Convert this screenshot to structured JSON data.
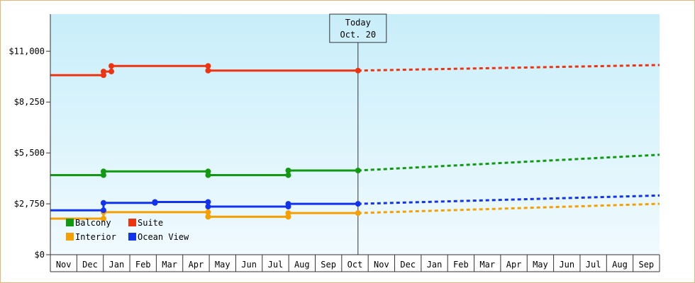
{
  "chart_data": {
    "type": "line",
    "title": "",
    "xlabel": "",
    "ylabel": "",
    "ylim": [
      0,
      13000
    ],
    "yticks": [
      0,
      2750,
      5500,
      8250,
      11000
    ],
    "ytick_labels": [
      "$0",
      "$2,750",
      "$5,500",
      "$8,250",
      "$11,000"
    ],
    "months": [
      "Nov",
      "Dec",
      "Jan",
      "Feb",
      "Mar",
      "Apr",
      "May",
      "Jun",
      "Jul",
      "Aug",
      "Sep",
      "Oct",
      "Nov",
      "Dec",
      "Jan",
      "Feb",
      "Mar",
      "Apr",
      "May",
      "Jun",
      "Jul",
      "Aug",
      "Sep"
    ],
    "x_start": "2022-11-01",
    "x_end": "2024-09-30",
    "today": {
      "label": "Today",
      "date_label": "Oct. 20",
      "x": "2023-10-20"
    },
    "grid": false,
    "legend_position": "bottom-left",
    "series": [
      {
        "name": "Balcony",
        "color": "#119911",
        "points": [
          [
            "2022-11-01",
            4300
          ],
          [
            "2023-01-01",
            4300
          ],
          [
            "2023-01-01",
            4500
          ],
          [
            "2023-05-01",
            4500
          ],
          [
            "2023-05-01",
            4300
          ],
          [
            "2023-08-01",
            4300
          ],
          [
            "2023-08-01",
            4550
          ],
          [
            "2023-10-20",
            4550
          ]
        ],
        "forecast": [
          [
            "2023-10-20",
            4550
          ],
          [
            "2024-09-30",
            5400
          ]
        ]
      },
      {
        "name": "Suite",
        "color": "#ee3311",
        "points": [
          [
            "2022-11-01",
            9700
          ],
          [
            "2023-01-01",
            9700
          ],
          [
            "2023-01-01",
            9900
          ],
          [
            "2023-01-10",
            9900
          ],
          [
            "2023-01-10",
            10200
          ],
          [
            "2023-05-01",
            10200
          ],
          [
            "2023-05-01",
            9950
          ],
          [
            "2023-08-01",
            9950
          ],
          [
            "2023-10-20",
            9950
          ]
        ],
        "forecast": [
          [
            "2023-10-20",
            9950
          ],
          [
            "2024-09-30",
            10250
          ]
        ]
      },
      {
        "name": "Interior",
        "color": "#f5a000",
        "points": [
          [
            "2022-11-01",
            1950
          ],
          [
            "2023-01-01",
            1950
          ],
          [
            "2023-01-01",
            2300
          ],
          [
            "2023-03-01",
            2300
          ],
          [
            "2023-05-01",
            2300
          ],
          [
            "2023-05-01",
            2050
          ],
          [
            "2023-08-01",
            2050
          ],
          [
            "2023-08-01",
            2250
          ],
          [
            "2023-10-20",
            2250
          ]
        ],
        "forecast": [
          [
            "2023-10-20",
            2250
          ],
          [
            "2024-09-30",
            2750
          ]
        ]
      },
      {
        "name": "Ocean View",
        "color": "#1133ee",
        "points": [
          [
            "2022-11-01",
            2400
          ],
          [
            "2023-01-01",
            2400
          ],
          [
            "2023-01-01",
            2800
          ],
          [
            "2023-03-01",
            2800
          ],
          [
            "2023-03-01",
            2850
          ],
          [
            "2023-05-01",
            2850
          ],
          [
            "2023-05-01",
            2600
          ],
          [
            "2023-08-01",
            2600
          ],
          [
            "2023-08-01",
            2750
          ],
          [
            "2023-10-20",
            2750
          ]
        ],
        "forecast": [
          [
            "2023-10-20",
            2750
          ],
          [
            "2024-09-30",
            3200
          ]
        ]
      }
    ],
    "legend": [
      {
        "name": "Balcony",
        "color": "#119911"
      },
      {
        "name": "Suite",
        "color": "#ee3311"
      },
      {
        "name": "Interior",
        "color": "#f5a000"
      },
      {
        "name": "Ocean View",
        "color": "#1133ee"
      }
    ],
    "colors": {
      "bg_top": "#c8eefa",
      "bg_bottom": "#f0fafe",
      "axis": "#333333",
      "border": "#e3b77a"
    }
  }
}
